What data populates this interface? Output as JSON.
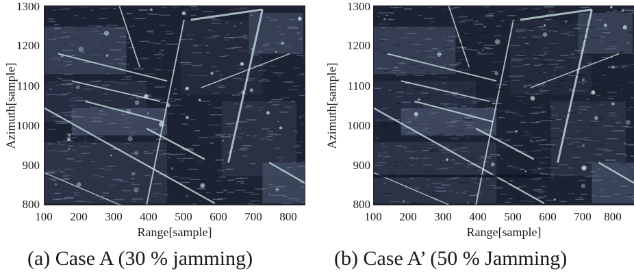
{
  "panels": [
    {
      "caption": "(a) Case A (30 % jamming)",
      "ylabel": "Azimuth[sample]",
      "xlabel": "Range[sample]",
      "yticks": [
        "1300",
        "1200",
        "1100",
        "1000",
        "900",
        "800"
      ],
      "xticks": [
        "100",
        "200",
        "300",
        "400",
        "500",
        "600",
        "700",
        "800"
      ]
    },
    {
      "caption": "(b) Case A’ (50 % Jamming)",
      "ylabel": "Azimuth[sample]",
      "xlabel": "Range[sample]",
      "yticks": [
        "1300",
        "1200",
        "1100",
        "1000",
        "900",
        "800"
      ],
      "xticks": [
        "100",
        "200",
        "300",
        "400",
        "500",
        "600",
        "700",
        "800"
      ]
    }
  ],
  "colors": {
    "image_base": "#1d2233",
    "bright": "#cfe8e8",
    "mid": "#6f7b95"
  }
}
